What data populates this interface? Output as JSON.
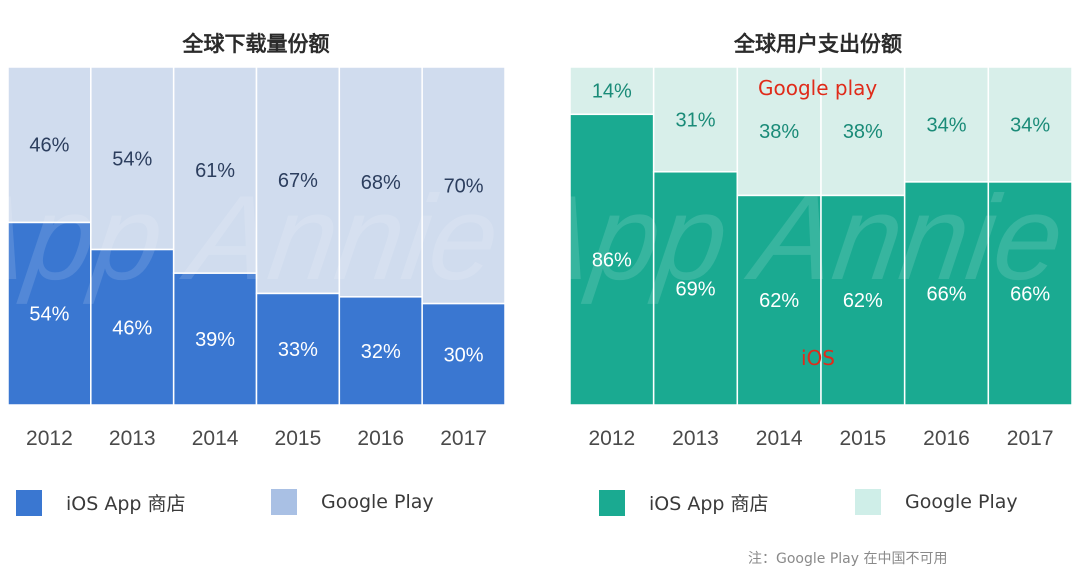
{
  "charts": [
    {
      "title": "全球下载量份额",
      "chart_data": {
        "type": "bar",
        "stacked": true,
        "categories": [
          "2012",
          "2013",
          "2014",
          "2015",
          "2016",
          "2017"
        ],
        "series": [
          {
            "name": "iOS App 商店",
            "values": [
              54,
              46,
              39,
              33,
              32,
              30
            ],
            "labels": [
              "54%",
              "46%",
              "39%",
              "33%",
              "32%",
              "30%"
            ],
            "color": "#3a77d1"
          },
          {
            "name": "Google Play",
            "values": [
              46,
              54,
              61,
              67,
              68,
              70
            ],
            "labels": [
              "46%",
              "54%",
              "61%",
              "67%",
              "68%",
              "70%"
            ],
            "color": "#d0dcee"
          }
        ],
        "ylim": [
          0,
          100
        ]
      },
      "legend": [
        {
          "label": "iOS App 商店",
          "color": "#3a77d1"
        },
        {
          "label": "Google Play",
          "color": "#a9c0e4"
        }
      ]
    },
    {
      "title": "全球用户支出份额",
      "chart_data": {
        "type": "bar",
        "stacked": true,
        "categories": [
          "2012",
          "2013",
          "2014",
          "2015",
          "2016",
          "2017"
        ],
        "series": [
          {
            "name": "iOS App 商店",
            "values": [
              86,
              69,
              62,
              62,
              66,
              66
            ],
            "labels": [
              "86%",
              "69%",
              "62%",
              "62%",
              "66%",
              "66%"
            ],
            "color": "#1aaa91"
          },
          {
            "name": "Google Play",
            "values": [
              14,
              31,
              38,
              38,
              34,
              34
            ],
            "labels": [
              "14%",
              "31%",
              "38%",
              "38%",
              "34%",
              "34%"
            ],
            "color": "#d8efea"
          }
        ],
        "ylim": [
          0,
          100
        ]
      },
      "legend": [
        {
          "label": "iOS App 商店",
          "color": "#1aaa91"
        },
        {
          "label": "Google Play",
          "color": "#cfeee8"
        }
      ],
      "annotations": {
        "google": "Google play",
        "ios": "iOS"
      }
    }
  ],
  "watermark": "App Annie",
  "note": "注：Google Play 在中国不可用"
}
